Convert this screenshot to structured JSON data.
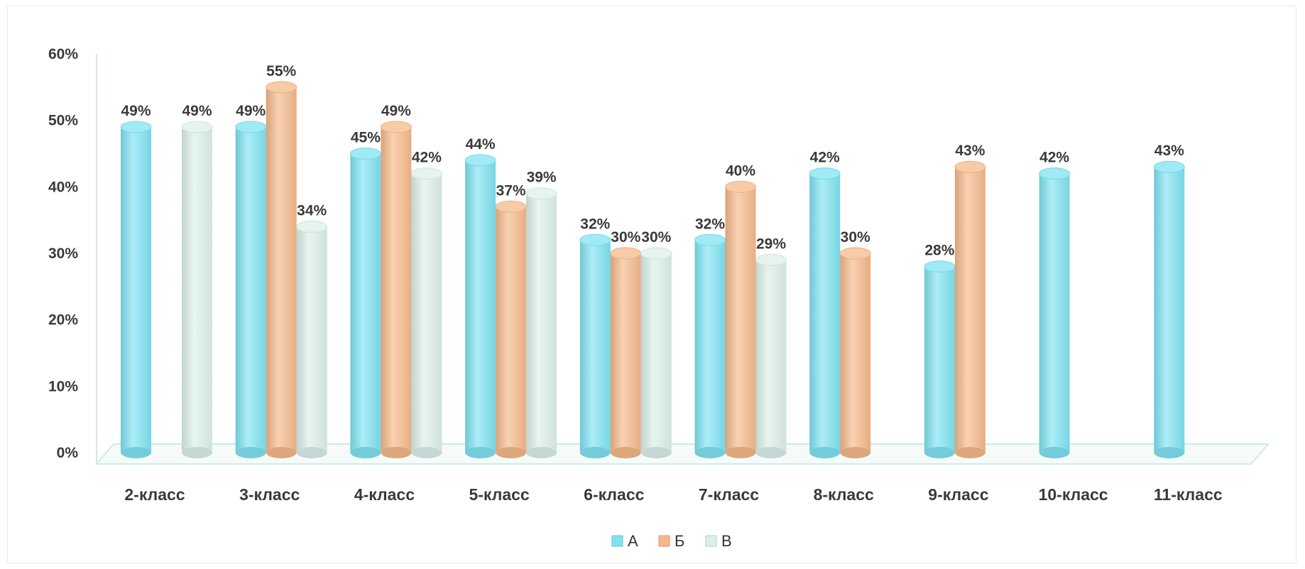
{
  "chart_data": {
    "type": "bar",
    "style": "3d-cylinder",
    "categories": [
      "2-класс",
      "3-класс",
      "4-класс",
      "5-класс",
      "6-класс",
      "7-класс",
      "8-класс",
      "9-класс",
      "10-класс",
      "11-класс"
    ],
    "series": [
      {
        "name": "А",
        "color": "#7fe3f2",
        "values": [
          49,
          49,
          45,
          44,
          32,
          32,
          42,
          28,
          42,
          43
        ]
      },
      {
        "name": "Б",
        "color": "#f5b98a",
        "values": [
          null,
          55,
          49,
          37,
          30,
          40,
          30,
          43,
          null,
          null
        ]
      },
      {
        "name": "В",
        "color": "#dcf0ea",
        "values": [
          49,
          34,
          42,
          39,
          30,
          29,
          null,
          null,
          null,
          null
        ]
      }
    ],
    "value_format": "{v}%",
    "ylim": [
      0,
      60
    ],
    "y_ticks": [
      "0%",
      "10%",
      "20%",
      "30%",
      "40%",
      "50%",
      "60%"
    ],
    "legend": "bottom",
    "grid": false
  }
}
